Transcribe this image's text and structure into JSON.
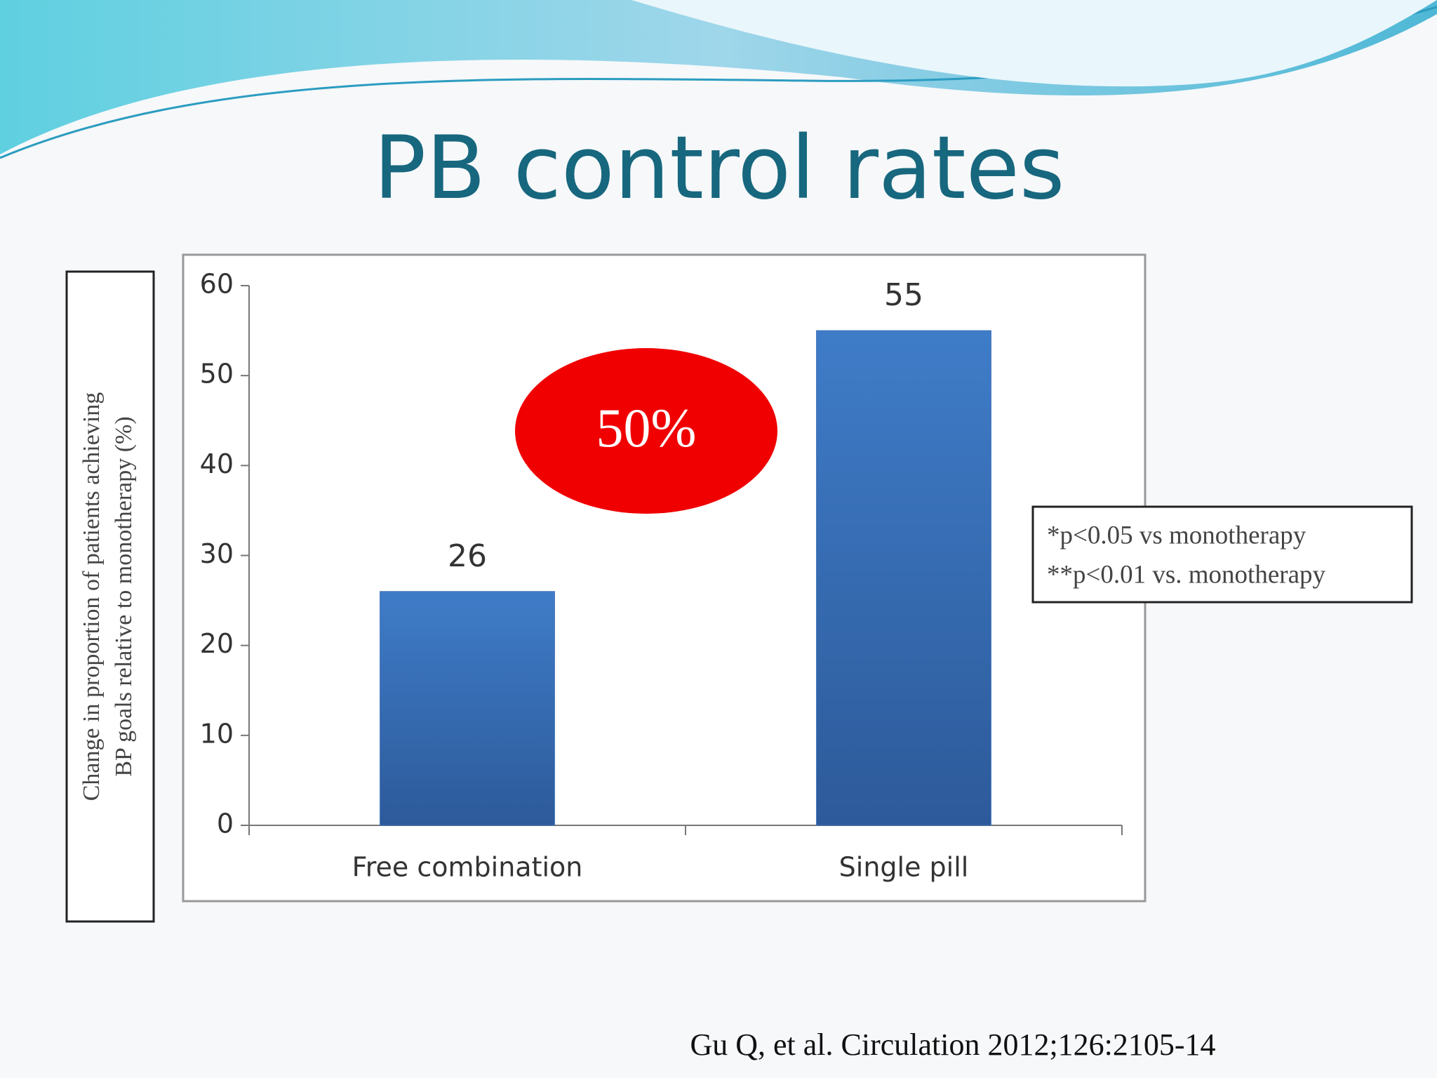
{
  "chart_data": {
    "type": "bar",
    "title": "PB control rates",
    "y_label": [
      "Change in proportion of patients achieving",
      "BP goals relative to monotherapy (%)"
    ],
    "categories": [
      "Free combination",
      "Single pill"
    ],
    "values": [
      26,
      55
    ],
    "color": "#3a6fb8",
    "ylim": [
      0,
      60
    ],
    "yticks": [
      0,
      10,
      20,
      30,
      40,
      50,
      60
    ],
    "grid": false,
    "annotation": "50%",
    "footnotes": [
      "*p<0.05 vs monotherapy",
      "**p<0.01 vs. monotherapy"
    ],
    "citation": "Gu Q, et al. Circulation 2012;126:2105-14"
  }
}
